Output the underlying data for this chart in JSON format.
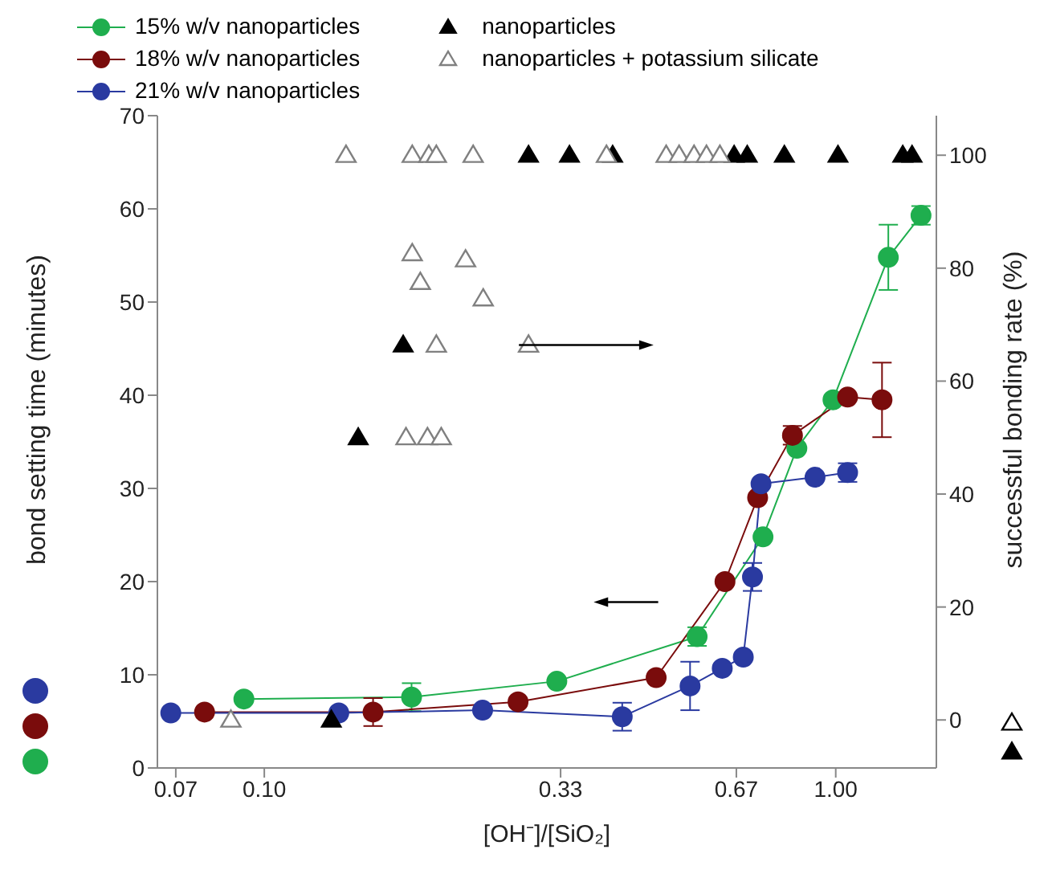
{
  "chart_data": {
    "type": "line",
    "xlabel": "[OH⁻]/[SiO₂]",
    "ylabel": "bond setting time (minutes)",
    "y2label": "successful bonding rate (%)",
    "log": "x",
    "xlim": [
      0.065,
      1.5
    ],
    "xticks": [
      0.07,
      {
        "value": 0.1,
        "label": "0.10"
      },
      0.33,
      0.67,
      {
        "value": 1,
        "label": "1.00"
      }
    ],
    "ylim": [
      0,
      70
    ],
    "yticks": [
      0,
      10,
      20,
      30,
      40,
      50,
      60,
      70
    ],
    "y2lim": [
      -8.5,
      107
    ],
    "y2ticks": [
      0,
      20,
      40,
      60,
      80,
      100
    ],
    "grid": false,
    "legend": "top",
    "marker": "circle",
    "line_style": "solid",
    "series": [
      {
        "name": "15% w/v nanoparticles",
        "color": "#1fae4e",
        "x": [
          0.0921,
          0.181,
          0.325,
          0.572,
          0.746,
          0.855,
          0.989,
          1.236,
          1.41
        ],
        "values": [
          7.4,
          7.6,
          9.3,
          14.1,
          24.8,
          34.3,
          39.5,
          54.8,
          59.3
        ],
        "errors": [
          null,
          1.5,
          null,
          1,
          null,
          null,
          null,
          3.5,
          1
        ]
      },
      {
        "name": "18% w/v nanoparticles",
        "color": "#7a0c0c",
        "x": [
          0.0786,
          0.155,
          0.278,
          0.485,
          0.64,
          0.73,
          0.84,
          1.049,
          1.205
        ],
        "values": [
          6.0,
          6.0,
          7.1,
          9.7,
          20.0,
          29.0,
          35.7,
          39.8,
          39.5
        ],
        "errors": [
          null,
          1.5,
          null,
          null,
          null,
          null,
          1,
          null,
          4
        ]
      },
      {
        "name": "21% w/v nanoparticles",
        "color": "#2a3aa0",
        "x": [
          0.0686,
          0.135,
          0.241,
          0.423,
          0.556,
          0.633,
          0.689,
          0.715,
          0.74,
          0.92,
          1.049
        ],
        "values": [
          5.9,
          5.9,
          6.2,
          5.5,
          8.8,
          10.7,
          11.9,
          20.5,
          30.5,
          31.2,
          31.7
        ],
        "errors": [
          null,
          null,
          null,
          1.5,
          2.6,
          null,
          null,
          1.5,
          null,
          null,
          1
        ]
      },
      {
        "name": "nanoparticles",
        "type": "scatter",
        "axis": "y2",
        "marker": "triangle",
        "color": "#000000",
        "x": [
          0.29,
          0.342,
          0.407,
          0.664,
          0.7,
          0.813,
          1.009,
          1.31,
          1.36,
          0.175,
          0.146,
          0.131
        ],
        "values": [
          100,
          100,
          100,
          100,
          100,
          100,
          100,
          100,
          100,
          66.4,
          50,
          0
        ]
      },
      {
        "name": "nanoparticles + potassium silicate",
        "type": "scatter",
        "axis": "y2",
        "marker": "triangle-open",
        "color": "#808080",
        "x": [
          0.139,
          0.1815,
          0.194,
          0.2,
          0.232,
          0.397,
          0.505,
          0.532,
          0.565,
          0.594,
          0.627,
          0.1815,
          0.225,
          0.1875,
          0.2416,
          0.2,
          0.29,
          0.177,
          0.193,
          0.204,
          0.0874
        ],
        "values": [
          100,
          100,
          100,
          100,
          100,
          100,
          100,
          100,
          100,
          100,
          100,
          82.6,
          81.5,
          77.5,
          74.6,
          66.4,
          66.4,
          50,
          50,
          50,
          0
        ]
      }
    ]
  }
}
